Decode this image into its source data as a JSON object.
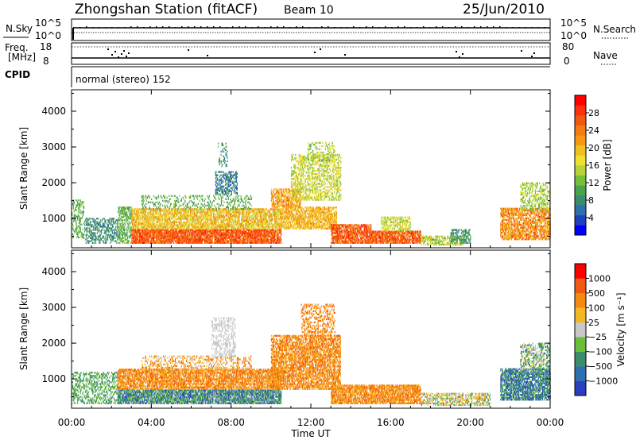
{
  "header": {
    "station": "Zhongshan Station (fitACF)",
    "beam": "Beam 10",
    "date": "25/Jun/2010"
  },
  "noise_panel": {
    "left_label": "N.Sky",
    "left_ticks": [
      "10^5",
      "10^0"
    ],
    "right_ticks": [
      "10^5",
      "10^0"
    ],
    "right_label": "N.Search"
  },
  "freq_panel": {
    "left_label_1": "Freq.",
    "left_label_2": "[MHz]",
    "left_ticks": [
      "18",
      "8"
    ],
    "right_ticks": [
      "80",
      "0"
    ],
    "right_label": "Nave"
  },
  "cpid": {
    "label": "CPID",
    "value": "normal (stereo) 152"
  },
  "colors": {
    "background": "#ffffff",
    "axis": "#000000"
  },
  "chart_data": [
    {
      "type": "heatmap",
      "name": "power",
      "ylabel": "Slant Range [km]",
      "xlabel": "",
      "x_ticks": [
        0,
        4,
        8,
        12,
        16,
        20,
        24
      ],
      "x_tick_labels": [
        "00:00",
        "04:00",
        "08:00",
        "12:00",
        "16:00",
        "20:00",
        "00:00"
      ],
      "xlim": [
        0,
        24
      ],
      "y_ticks": [
        1000,
        2000,
        3000,
        4000
      ],
      "y_tick_labels": [
        "1000",
        "2000",
        "3000",
        "4000"
      ],
      "ylim": [
        180,
        4600
      ],
      "colorbar": {
        "label": "Power [dB]",
        "tick_labels": [
          "4",
          "8",
          "12",
          "16",
          "20",
          "24",
          "28"
        ],
        "tick_values": [
          4,
          8,
          12,
          16,
          20,
          24,
          28
        ],
        "range": [
          0,
          32
        ],
        "colors": [
          "#0000ff",
          "#2040c0",
          "#2e6fae",
          "#3b8c6c",
          "#4ca34d",
          "#75bf3a",
          "#b6d43a",
          "#f0e030",
          "#f0c020",
          "#f59a10",
          "#f57a10",
          "#f05a10",
          "#ff3010",
          "#ff0000"
        ]
      },
      "regions": [
        {
          "t": [
            0.0,
            0.6
          ],
          "r": [
            450,
            1500
          ],
          "v": [
            8,
            14
          ],
          "d": 0.35
        },
        {
          "t": [
            0.6,
            2.3
          ],
          "r": [
            300,
            1000
          ],
          "v": [
            6,
            10
          ],
          "d": 0.45
        },
        {
          "t": [
            2.3,
            3.0
          ],
          "r": [
            300,
            1300
          ],
          "v": [
            8,
            14
          ],
          "d": 0.5
        },
        {
          "t": [
            3.0,
            10.5
          ],
          "r": [
            300,
            700
          ],
          "v": [
            22,
            30
          ],
          "d": 0.85
        },
        {
          "t": [
            3.0,
            10.5
          ],
          "r": [
            700,
            1250
          ],
          "v": [
            14,
            24
          ],
          "d": 0.7
        },
        {
          "t": [
            3.5,
            9.0
          ],
          "r": [
            1250,
            1650
          ],
          "v": [
            8,
            14
          ],
          "d": 0.25
        },
        {
          "t": [
            7.2,
            8.3
          ],
          "r": [
            1650,
            2300
          ],
          "v": [
            4,
            10
          ],
          "d": 0.45
        },
        {
          "t": [
            7.3,
            7.8
          ],
          "r": [
            2400,
            3100
          ],
          "v": [
            5,
            12
          ],
          "d": 0.2
        },
        {
          "t": [
            10.0,
            11.5
          ],
          "r": [
            1300,
            1800
          ],
          "v": [
            18,
            26
          ],
          "d": 0.6
        },
        {
          "t": [
            10.5,
            13.3
          ],
          "r": [
            700,
            1300
          ],
          "v": [
            16,
            24
          ],
          "d": 0.7
        },
        {
          "t": [
            11.0,
            13.5
          ],
          "r": [
            1500,
            2800
          ],
          "v": [
            12,
            20
          ],
          "d": 0.45
        },
        {
          "t": [
            11.8,
            13.2
          ],
          "r": [
            2600,
            3100
          ],
          "v": [
            10,
            18
          ],
          "d": 0.3
        },
        {
          "t": [
            13.0,
            15.0
          ],
          "r": [
            300,
            800
          ],
          "v": [
            22,
            30
          ],
          "d": 0.8
        },
        {
          "t": [
            15.0,
            17.5
          ],
          "r": [
            300,
            650
          ],
          "v": [
            22,
            30
          ],
          "d": 0.8
        },
        {
          "t": [
            15.5,
            17.0
          ],
          "r": [
            650,
            1050
          ],
          "v": [
            12,
            20
          ],
          "d": 0.5
        },
        {
          "t": [
            17.5,
            19.7
          ],
          "r": [
            250,
            500
          ],
          "v": [
            10,
            20
          ],
          "d": 0.55
        },
        {
          "t": [
            19.0,
            20.0
          ],
          "r": [
            300,
            700
          ],
          "v": [
            6,
            12
          ],
          "d": 0.5
        },
        {
          "t": [
            21.5,
            24.0
          ],
          "r": [
            400,
            1300
          ],
          "v": [
            18,
            28
          ],
          "d": 0.65
        },
        {
          "t": [
            22.5,
            24.0
          ],
          "r": [
            1200,
            2000
          ],
          "v": [
            10,
            18
          ],
          "d": 0.4
        }
      ]
    },
    {
      "type": "heatmap",
      "name": "velocity",
      "ylabel": "Slant Range [km]",
      "xlabel": "Time UT",
      "x_ticks": [
        0,
        4,
        8,
        12,
        16,
        20,
        24
      ],
      "x_tick_labels": [
        "00:00",
        "04:00",
        "08:00",
        "12:00",
        "16:00",
        "20:00",
        "00:00"
      ],
      "xlim": [
        0,
        24
      ],
      "y_ticks": [
        1000,
        2000,
        3000,
        4000
      ],
      "y_tick_labels": [
        "1000",
        "2000",
        "3000",
        "4000"
      ],
      "ylim": [
        180,
        4600
      ],
      "colorbar": {
        "label": "Velocity [m s⁻¹]",
        "tick_labels": [
          "1000",
          "500",
          "100",
          "25",
          "−25",
          "−100",
          "−500",
          "−1000"
        ],
        "tick_values": [
          1000,
          500,
          100,
          25,
          -25,
          -100,
          -500,
          -1000
        ],
        "colors": [
          "#2a3fbf",
          "#2e6fae",
          "#3b8c6c",
          "#6abf3a",
          "#c8c8c8",
          "#f5b820",
          "#f58a10",
          "#f05a10",
          "#ff0000"
        ]
      },
      "regions": [
        {
          "t": [
            0.0,
            2.3
          ],
          "r": [
            300,
            1200
          ],
          "v": [
            2,
            3
          ],
          "d": 0.35
        },
        {
          "t": [
            2.3,
            10.5
          ],
          "r": [
            300,
            700
          ],
          "v": [
            0,
            4
          ],
          "d": 0.85
        },
        {
          "t": [
            2.3,
            10.5
          ],
          "r": [
            700,
            1250
          ],
          "v": [
            5,
            7
          ],
          "d": 0.7
        },
        {
          "t": [
            3.5,
            9.0
          ],
          "r": [
            1250,
            1650
          ],
          "v": [
            4,
            7
          ],
          "d": 0.3
        },
        {
          "t": [
            7.0,
            8.2
          ],
          "r": [
            1600,
            2700
          ],
          "v": [
            4,
            4
          ],
          "d": 0.35
        },
        {
          "t": [
            10.0,
            13.5
          ],
          "r": [
            700,
            2200
          ],
          "v": [
            5,
            7
          ],
          "d": 0.65
        },
        {
          "t": [
            11.5,
            13.2
          ],
          "r": [
            2200,
            3100
          ],
          "v": [
            5,
            7
          ],
          "d": 0.35
        },
        {
          "t": [
            13.0,
            17.5
          ],
          "r": [
            300,
            800
          ],
          "v": [
            5,
            7
          ],
          "d": 0.75
        },
        {
          "t": [
            17.5,
            21.0
          ],
          "r": [
            250,
            600
          ],
          "v": [
            2,
            6
          ],
          "d": 0.5
        },
        {
          "t": [
            21.5,
            24.0
          ],
          "r": [
            400,
            1300
          ],
          "v": [
            0,
            3
          ],
          "d": 0.7
        },
        {
          "t": [
            22.5,
            24.0
          ],
          "r": [
            1200,
            2000
          ],
          "v": [
            1,
            5
          ],
          "d": 0.4
        }
      ]
    }
  ]
}
